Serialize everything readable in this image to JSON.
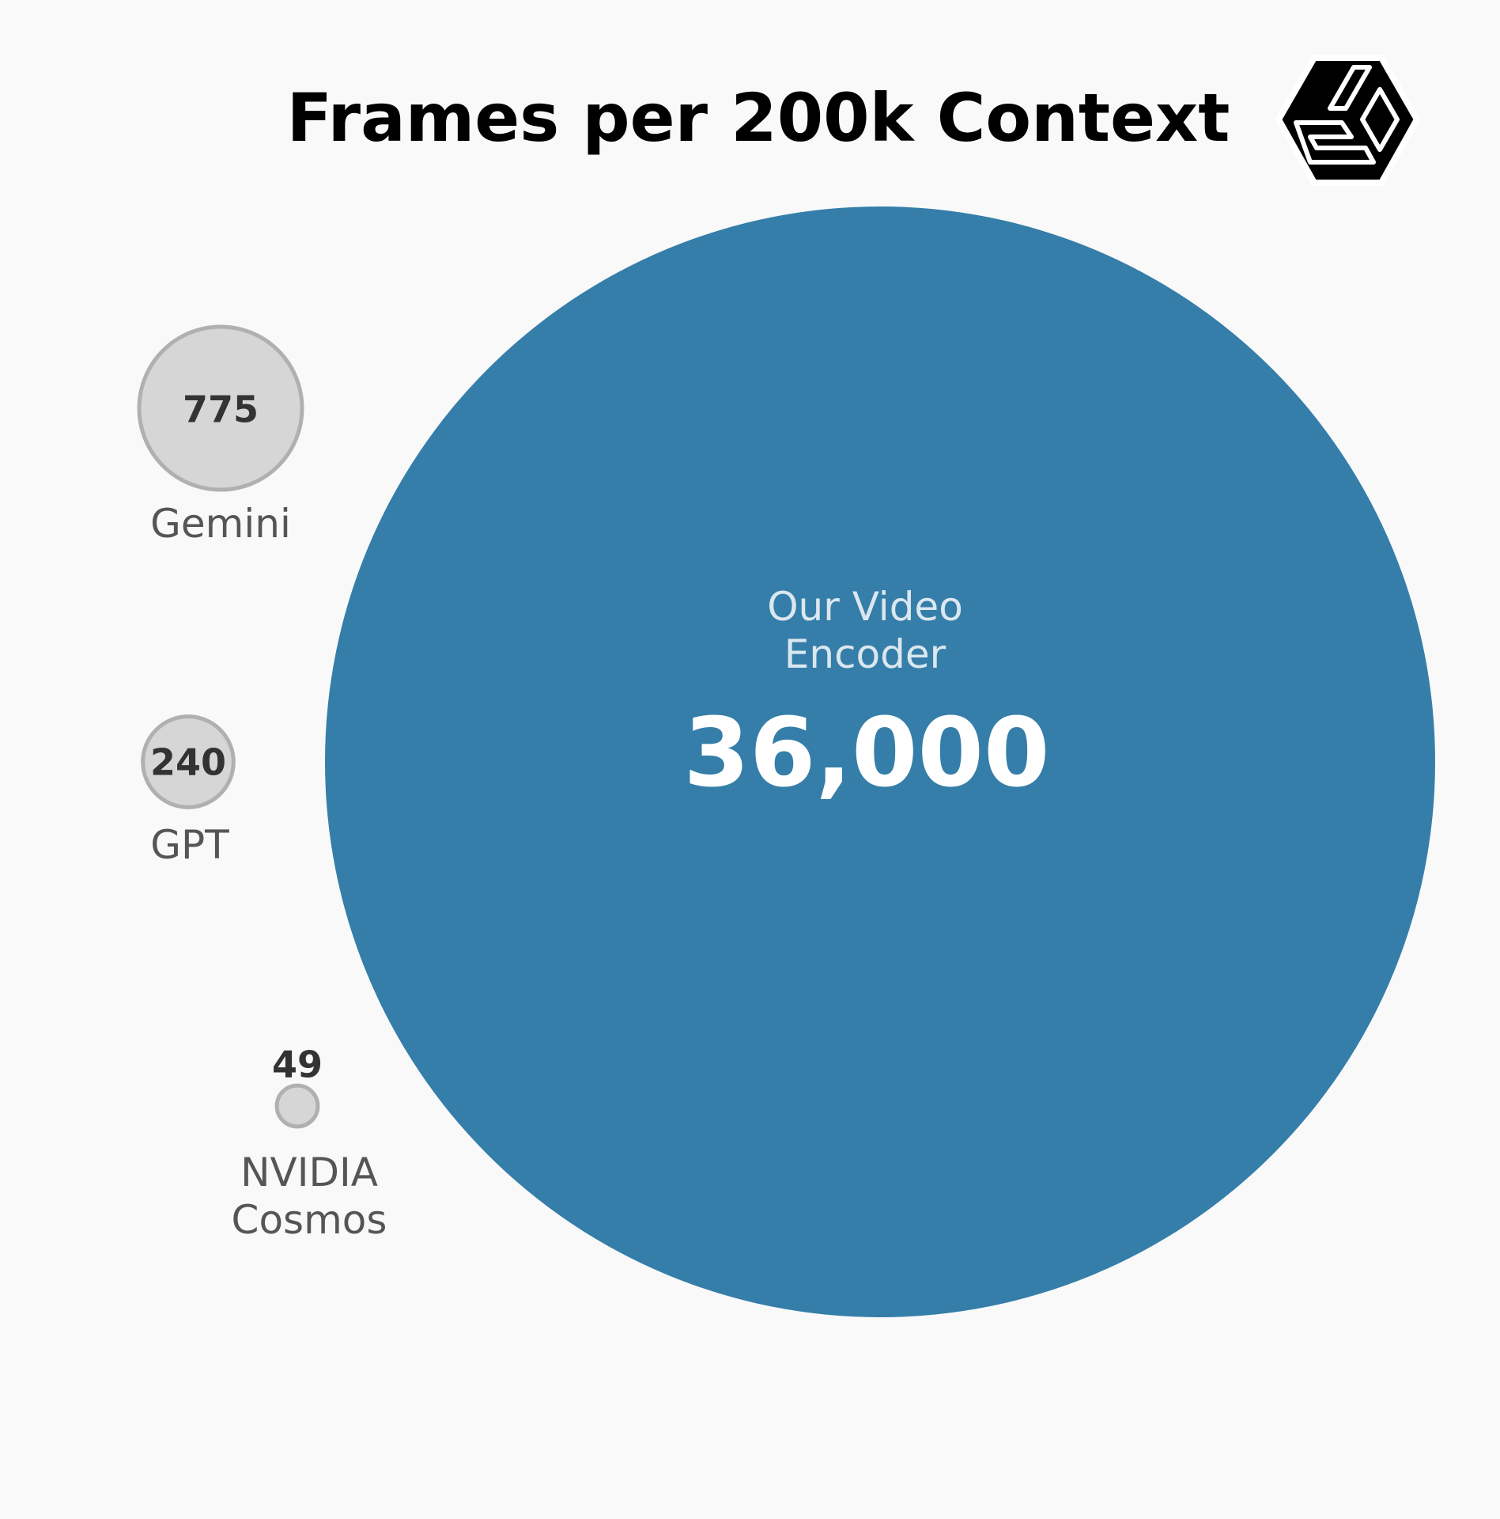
{
  "chart_data": {
    "type": "bubble",
    "title": "Frames per 200k Context",
    "categories": [
      "Our Video Encoder",
      "Gemini",
      "GPT",
      "NVIDIA Cosmos"
    ],
    "values": [
      36000,
      775,
      240,
      49
    ],
    "value_labels": [
      "36,000",
      "775",
      "240",
      "49"
    ],
    "colors": [
      "#357ea9",
      "#d6d6d6",
      "#d6d6d6",
      "#d6d6d6"
    ]
  }
}
